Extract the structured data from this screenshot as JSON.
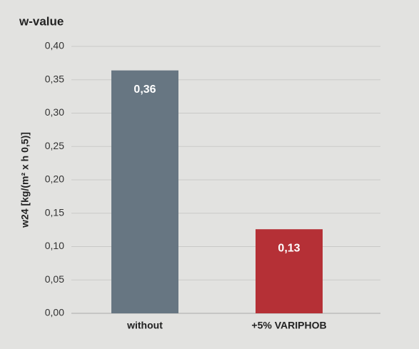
{
  "chart_data": {
    "type": "bar",
    "title": "w-value",
    "y_label": "w24 [kg/(m² x h 0,5)]",
    "categories": [
      "without",
      "+5% VARIPHOB"
    ],
    "values": [
      0.364,
      0.126
    ],
    "value_labels": [
      "0,36",
      "0,13"
    ],
    "colors": [
      "#677682",
      "#b53036"
    ],
    "ylim": [
      0,
      0.4
    ],
    "yticks": [
      {
        "value": 0,
        "label": "0,00"
      },
      {
        "value": 0.05,
        "label": "0,05"
      },
      {
        "value": 0.1,
        "label": "0,10"
      },
      {
        "value": 0.15,
        "label": "0,15"
      },
      {
        "value": 0.2,
        "label": "0,20"
      },
      {
        "value": 0.25,
        "label": "0,25"
      },
      {
        "value": 0.3,
        "label": "0,30"
      },
      {
        "value": 0.35,
        "label": "0,35"
      },
      {
        "value": 0.4,
        "label": "0,40"
      }
    ],
    "grid": true
  }
}
